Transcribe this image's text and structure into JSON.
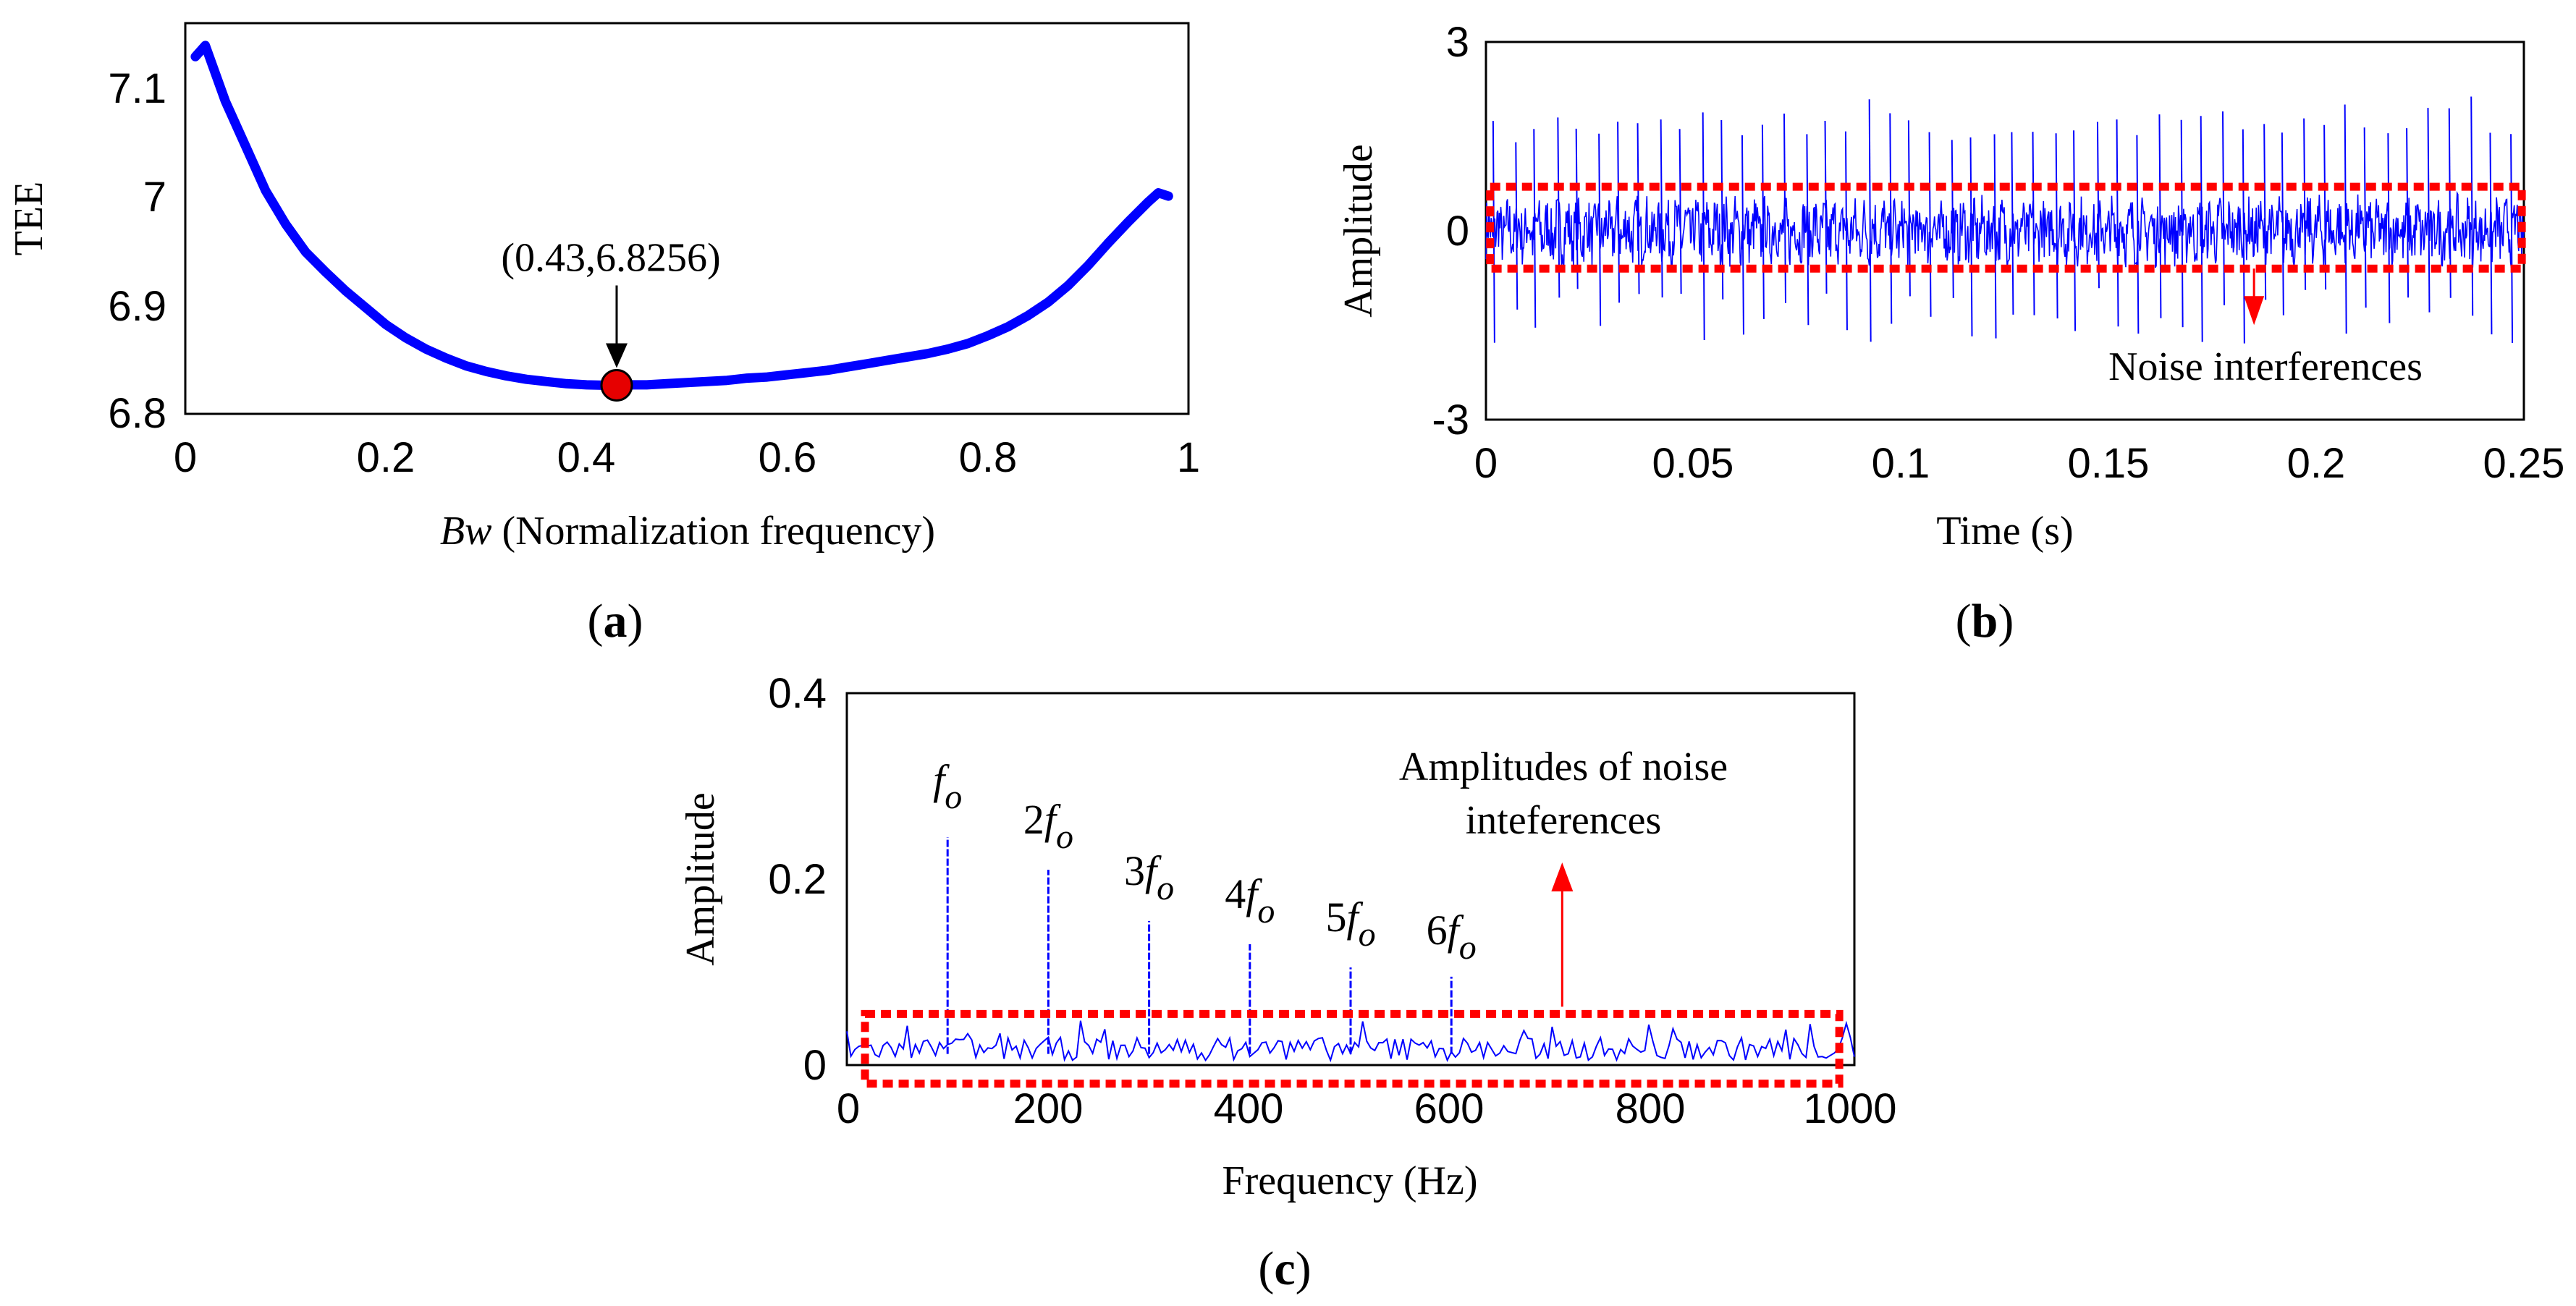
{
  "colors": {
    "signal": "#0000ff",
    "highlight": "#ff0000",
    "axis": "#000000",
    "marker_fill": "#e60000"
  },
  "panels": {
    "a": {
      "label_open": "(",
      "label_letter": "a",
      "label_close": ")"
    },
    "b": {
      "label_open": "(",
      "label_letter": "b",
      "label_close": ")"
    },
    "c": {
      "label_open": "(",
      "label_letter": "c",
      "label_close": ")"
    }
  },
  "chart_data": [
    {
      "id": "a",
      "type": "line",
      "xlabel_italic": "Bw",
      "xlabel_rest": " (Normalization frequency)",
      "ylabel": "TEE",
      "xlim": [
        0,
        1
      ],
      "ylim": [
        6.8,
        7.15
      ],
      "xticks": [
        0,
        0.2,
        0.4,
        0.6,
        0.8,
        1
      ],
      "xtick_labels": [
        "0",
        "0.2",
        "0.4",
        "0.6",
        "0.8",
        "1"
      ],
      "yticks": [
        6.8,
        6.9,
        7.0,
        7.1
      ],
      "ytick_labels": [
        "6.8",
        "6.9",
        "7",
        "7.1"
      ],
      "x": [
        0.01,
        0.02,
        0.04,
        0.06,
        0.08,
        0.1,
        0.12,
        0.14,
        0.16,
        0.18,
        0.2,
        0.22,
        0.24,
        0.26,
        0.28,
        0.3,
        0.32,
        0.34,
        0.36,
        0.38,
        0.4,
        0.42,
        0.44,
        0.46,
        0.48,
        0.5,
        0.52,
        0.54,
        0.56,
        0.58,
        0.6,
        0.62,
        0.64,
        0.66,
        0.68,
        0.7,
        0.72,
        0.74,
        0.76,
        0.78,
        0.8,
        0.82,
        0.84,
        0.86,
        0.88,
        0.9,
        0.92,
        0.94,
        0.96,
        0.97,
        0.98
      ],
      "y": [
        7.12,
        7.13,
        7.08,
        7.04,
        7.0,
        6.97,
        6.945,
        6.927,
        6.91,
        6.895,
        6.88,
        6.868,
        6.858,
        6.85,
        6.843,
        6.838,
        6.834,
        6.831,
        6.829,
        6.827,
        6.826,
        6.8256,
        6.826,
        6.826,
        6.827,
        6.828,
        6.829,
        6.83,
        6.832,
        6.833,
        6.835,
        6.837,
        6.839,
        6.842,
        6.845,
        6.848,
        6.851,
        6.854,
        6.858,
        6.863,
        6.87,
        6.878,
        6.888,
        6.9,
        6.915,
        6.933,
        6.953,
        6.972,
        6.99,
        6.998,
        6.995
      ],
      "highlight": {
        "x": 0.43,
        "y": 6.8256
      },
      "annotation": "(0.43,6.8256)"
    },
    {
      "id": "b",
      "type": "line",
      "xlabel": "Time (s)",
      "ylabel": "Amplitude",
      "xlim": [
        0,
        0.25
      ],
      "ylim": [
        -3,
        3
      ],
      "xticks": [
        0,
        0.05,
        0.1,
        0.15,
        0.2,
        0.25
      ],
      "xtick_labels": [
        "0",
        "0.05",
        "0.1",
        "0.15",
        "0.2",
        "0.25"
      ],
      "yticks": [
        -3,
        0,
        3
      ],
      "ytick_labels": [
        "-3",
        "0",
        "3"
      ],
      "noise_band": [
        -0.6,
        0.7
      ],
      "impulse_interval_s": 0.01,
      "impulse_peak_range": [
        1.4,
        2.2
      ],
      "annotation": "Noise interferences",
      "annotation_arrow_x": 0.185
    },
    {
      "id": "c",
      "type": "line",
      "xlabel": "Frequency (Hz)",
      "ylabel": "Amplitude",
      "xlim": [
        0,
        1000
      ],
      "ylim": [
        0,
        0.4
      ],
      "xticks": [
        0,
        200,
        400,
        600,
        800,
        1000
      ],
      "xtick_labels": [
        "0",
        "200",
        "400",
        "600",
        "800",
        "1000"
      ],
      "yticks": [
        0,
        0.2,
        0.4
      ],
      "ytick_labels": [
        "0",
        "0.2",
        "0.4"
      ],
      "peaks": [
        {
          "x": 100,
          "y": 0.245,
          "mult": "",
          "sym": "f",
          "sub": "o"
        },
        {
          "x": 200,
          "y": 0.21,
          "mult": "2",
          "sym": "f",
          "sub": "o"
        },
        {
          "x": 300,
          "y": 0.155,
          "mult": "3",
          "sym": "f",
          "sub": "o"
        },
        {
          "x": 400,
          "y": 0.13,
          "mult": "4",
          "sym": "f",
          "sub": "o"
        },
        {
          "x": 500,
          "y": 0.105,
          "mult": "5",
          "sym": "f",
          "sub": "o"
        },
        {
          "x": 600,
          "y": 0.095,
          "mult": "6",
          "sym": "f",
          "sub": "o"
        }
      ],
      "noise_floor": [
        0.005,
        0.03
      ],
      "noise_band": [
        -0.02,
        0.055
      ],
      "annotation_line1": "Amplitudes of noise",
      "annotation_line2": "inteferences",
      "annotation_arrow_x": 710
    }
  ]
}
